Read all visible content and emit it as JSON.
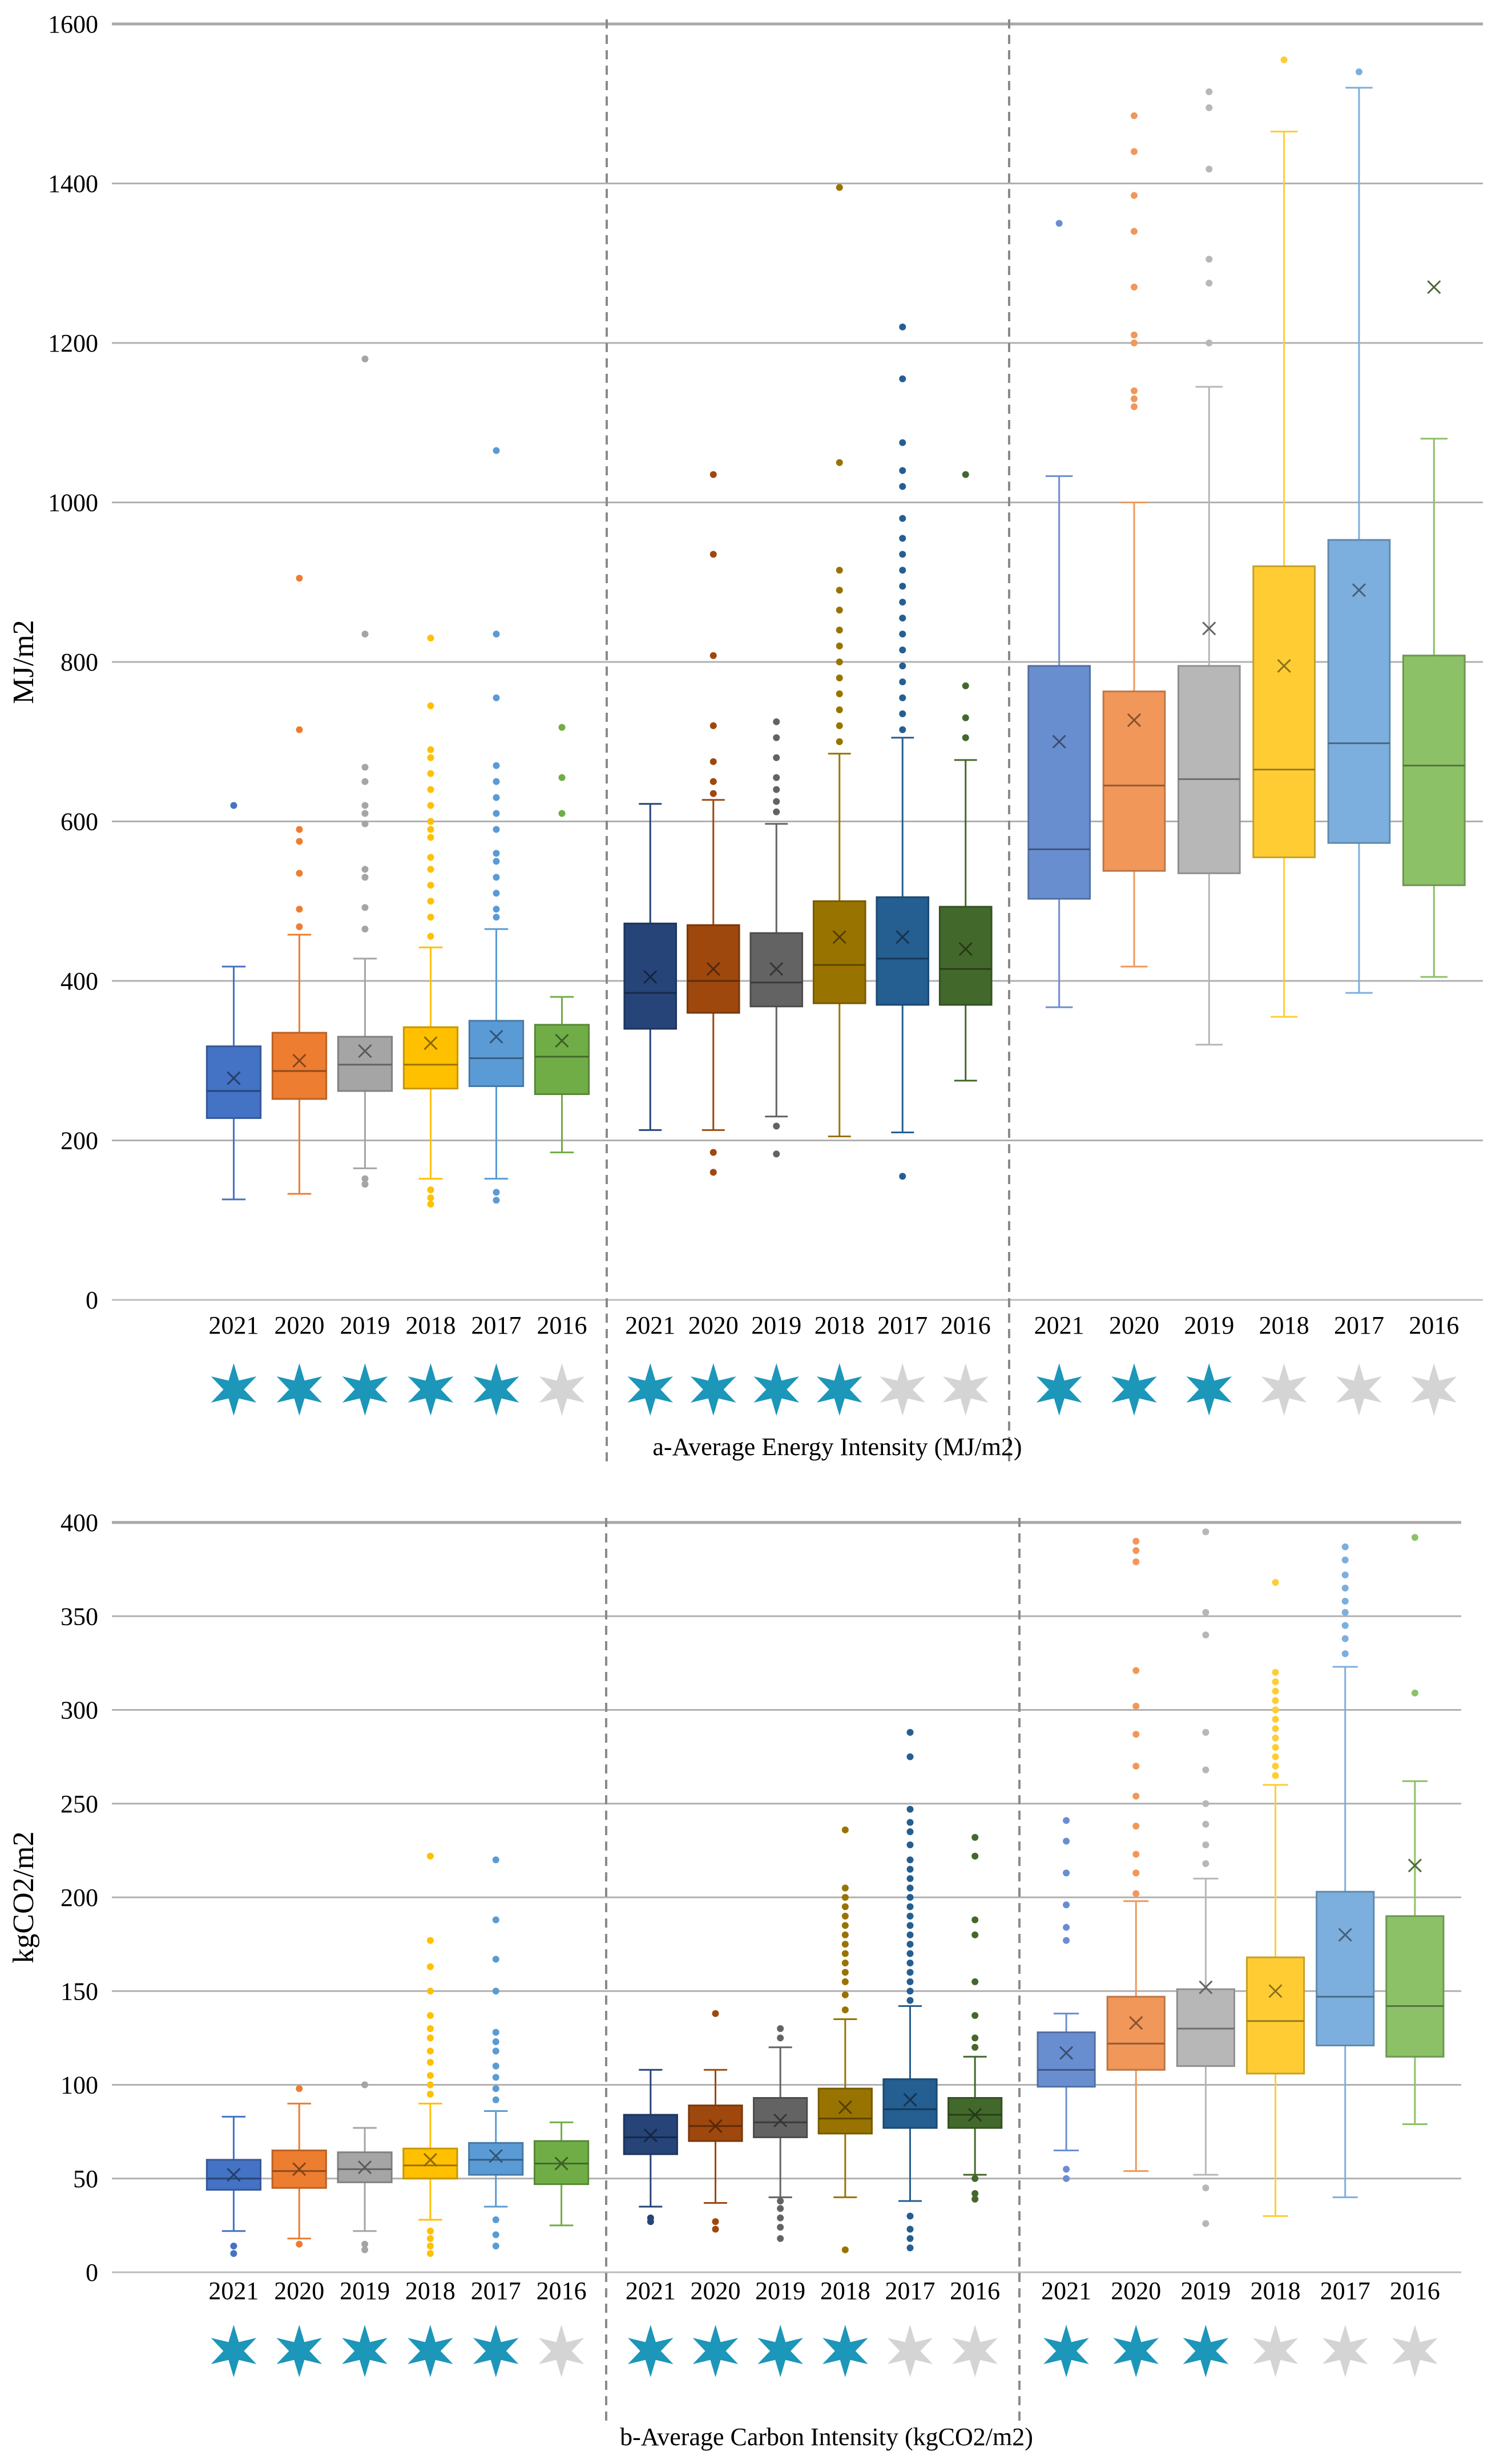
{
  "chart_data": [
    {
      "type": "boxplot",
      "caption": "a-Average Energy Intensity (MJ/m2)",
      "ylabel": "MJ/m2",
      "ylim": [
        0,
        1600
      ],
      "yticks": [
        "0",
        "200",
        "400",
        "600",
        "800",
        "1000",
        "1200",
        "1400",
        "1600"
      ],
      "grid": true,
      "categories": [
        "2021",
        "2020",
        "2019",
        "2018",
        "2017",
        "2016"
      ],
      "groups": [
        {
          "stars": [
            true,
            true,
            true,
            true,
            true,
            false
          ],
          "boxes": [
            {
              "year": "2021",
              "color": "#4472C4",
              "min": 126,
              "q1": 228,
              "median": 262,
              "q3": 318,
              "max": 418,
              "mean": 278,
              "outliers": [
                620
              ]
            },
            {
              "year": "2020",
              "color": "#ED7D31",
              "min": 133,
              "q1": 252,
              "median": 287,
              "q3": 335,
              "max": 458,
              "mean": 300,
              "outliers": [
                468,
                490,
                535,
                575,
                590,
                715,
                905
              ]
            },
            {
              "year": "2019",
              "color": "#A5A5A5",
              "min": 165,
              "q1": 262,
              "median": 295,
              "q3": 330,
              "max": 428,
              "mean": 312,
              "outliers": [
                145,
                152,
                465,
                492,
                530,
                540,
                597,
                610,
                620,
                650,
                668,
                835,
                1180
              ]
            },
            {
              "year": "2018",
              "color": "#FFC000",
              "min": 152,
              "q1": 265,
              "median": 295,
              "q3": 342,
              "max": 442,
              "mean": 322,
              "outliers": [
                120,
                128,
                138,
                456,
                480,
                500,
                520,
                540,
                555,
                580,
                590,
                600,
                620,
                640,
                660,
                680,
                690,
                745,
                830
              ]
            },
            {
              "year": "2017",
              "color": "#5B9BD5",
              "min": 152,
              "q1": 268,
              "median": 303,
              "q3": 350,
              "max": 465,
              "mean": 330,
              "outliers": [
                125,
                135,
                480,
                490,
                510,
                530,
                550,
                560,
                590,
                610,
                630,
                650,
                670,
                755,
                835,
                1065
              ]
            },
            {
              "year": "2016",
              "color": "#70AD47",
              "min": 185,
              "q1": 258,
              "median": 305,
              "q3": 345,
              "max": 380,
              "mean": 325,
              "outliers": [
                610,
                655,
                718
              ]
            }
          ]
        },
        {
          "stars": [
            true,
            true,
            true,
            true,
            false,
            false
          ],
          "boxes": [
            {
              "year": "2021",
              "color": "#264478",
              "min": 213,
              "q1": 340,
              "median": 385,
              "q3": 472,
              "max": 622,
              "mean": 405,
              "outliers": []
            },
            {
              "year": "2020",
              "color": "#9E480E",
              "min": 213,
              "q1": 360,
              "median": 400,
              "q3": 470,
              "max": 627,
              "mean": 415,
              "outliers": [
                160,
                185,
                635,
                650,
                675,
                720,
                808,
                935,
                1035
              ]
            },
            {
              "year": "2019",
              "color": "#636363",
              "min": 230,
              "q1": 368,
              "median": 398,
              "q3": 460,
              "max": 597,
              "mean": 415,
              "outliers": [
                183,
                218,
                612,
                625,
                640,
                655,
                680,
                705,
                725
              ]
            },
            {
              "year": "2018",
              "color": "#997300",
              "min": 205,
              "q1": 372,
              "median": 420,
              "q3": 500,
              "max": 685,
              "mean": 455,
              "outliers": [
                700,
                720,
                740,
                760,
                780,
                800,
                820,
                840,
                865,
                890,
                915,
                1050,
                1395
              ]
            },
            {
              "year": "2017",
              "color": "#255E91",
              "min": 210,
              "q1": 370,
              "median": 428,
              "q3": 505,
              "max": 705,
              "mean": 455,
              "outliers": [
                155,
                715,
                735,
                755,
                775,
                795,
                815,
                835,
                855,
                875,
                895,
                915,
                935,
                955,
                980,
                1020,
                1040,
                1075,
                1155,
                1220
              ]
            },
            {
              "year": "2016",
              "color": "#43682B",
              "min": 275,
              "q1": 370,
              "median": 415,
              "q3": 493,
              "max": 677,
              "mean": 440,
              "outliers": [
                705,
                730,
                770,
                1035
              ]
            }
          ]
        },
        {
          "stars": [
            true,
            true,
            true,
            false,
            false,
            false
          ],
          "boxes": [
            {
              "year": "2021",
              "color": "#698ED0",
              "min": 367,
              "q1": 503,
              "median": 565,
              "q3": 795,
              "max": 1033,
              "mean": 700,
              "outliers": [
                1350
              ]
            },
            {
              "year": "2020",
              "color": "#F1975A",
              "min": 418,
              "q1": 538,
              "median": 645,
              "q3": 763,
              "max": 1000,
              "mean": 727,
              "outliers": [
                1120,
                1130,
                1140,
                1200,
                1210,
                1270,
                1340,
                1385,
                1440,
                1485
              ]
            },
            {
              "year": "2019",
              "color": "#B7B7B7",
              "min": 320,
              "q1": 535,
              "median": 653,
              "q3": 795,
              "max": 1145,
              "mean": 842,
              "outliers": [
                1200,
                1275,
                1305,
                1418,
                1495,
                1515
              ]
            },
            {
              "year": "2018",
              "color": "#FFCD33",
              "min": 355,
              "q1": 555,
              "median": 665,
              "q3": 920,
              "max": 1465,
              "mean": 795,
              "outliers": [
                1555
              ]
            },
            {
              "year": "2017",
              "color": "#7CAFDD",
              "min": 385,
              "q1": 573,
              "median": 698,
              "q3": 953,
              "max": 1520,
              "mean": 890,
              "outliers": [
                1540
              ]
            },
            {
              "year": "2016",
              "color": "#8CC168",
              "min": 405,
              "q1": 520,
              "median": 670,
              "q3": 808,
              "max": 1080,
              "mean": 1270,
              "outliers": []
            }
          ]
        }
      ]
    },
    {
      "type": "boxplot",
      "caption": "b-Average Carbon Intensity (kgCO2/m2)",
      "ylabel": "kgCO2/m2",
      "ylim": [
        0,
        400
      ],
      "yticks": [
        "0",
        "50",
        "100",
        "150",
        "200",
        "250",
        "300",
        "350",
        "400"
      ],
      "grid": true,
      "categories": [
        "2021",
        "2020",
        "2019",
        "2018",
        "2017",
        "2016"
      ],
      "groups": [
        {
          "stars": [
            true,
            true,
            true,
            true,
            true,
            false
          ],
          "boxes": [
            {
              "year": "2021",
              "color": "#4472C4",
              "min": 22,
              "q1": 44,
              "median": 50,
              "q3": 60,
              "max": 83,
              "mean": 52,
              "outliers": [
                10,
                14
              ]
            },
            {
              "year": "2020",
              "color": "#ED7D31",
              "min": 18,
              "q1": 45,
              "median": 54,
              "q3": 65,
              "max": 90,
              "mean": 55,
              "outliers": [
                15,
                98
              ]
            },
            {
              "year": "2019",
              "color": "#A5A5A5",
              "min": 22,
              "q1": 48,
              "median": 55,
              "q3": 64,
              "max": 77,
              "mean": 56,
              "outliers": [
                12,
                15,
                100
              ]
            },
            {
              "year": "2018",
              "color": "#FFC000",
              "min": 28,
              "q1": 50,
              "median": 57,
              "q3": 66,
              "max": 90,
              "mean": 60,
              "outliers": [
                10,
                14,
                18,
                22,
                95,
                100,
                105,
                112,
                118,
                125,
                130,
                137,
                150,
                163,
                177,
                222
              ]
            },
            {
              "year": "2017",
              "color": "#5B9BD5",
              "min": 35,
              "q1": 52,
              "median": 60,
              "q3": 69,
              "max": 86,
              "mean": 62,
              "outliers": [
                14,
                20,
                28,
                92,
                98,
                104,
                110,
                118,
                123,
                128,
                150,
                167,
                188,
                220
              ]
            },
            {
              "year": "2016",
              "color": "#70AD47",
              "min": 25,
              "q1": 47,
              "median": 58,
              "q3": 70,
              "max": 80,
              "mean": 58,
              "outliers": []
            }
          ]
        },
        {
          "stars": [
            true,
            true,
            true,
            true,
            false,
            false
          ],
          "boxes": [
            {
              "year": "2021",
              "color": "#264478",
              "min": 35,
              "q1": 63,
              "median": 72,
              "q3": 84,
              "max": 108,
              "mean": 73,
              "outliers": [
                27,
                29
              ]
            },
            {
              "year": "2020",
              "color": "#9E480E",
              "min": 37,
              "q1": 70,
              "median": 78,
              "q3": 89,
              "max": 108,
              "mean": 78,
              "outliers": [
                23,
                27,
                138
              ]
            },
            {
              "year": "2019",
              "color": "#636363",
              "min": 40,
              "q1": 72,
              "median": 80,
              "q3": 93,
              "max": 120,
              "mean": 81,
              "outliers": [
                18,
                24,
                29,
                34,
                38,
                125,
                130
              ]
            },
            {
              "year": "2018",
              "color": "#997300",
              "min": 40,
              "q1": 74,
              "median": 82,
              "q3": 98,
              "max": 135,
              "mean": 88,
              "outliers": [
                12,
                140,
                148,
                155,
                160,
                165,
                170,
                175,
                180,
                185,
                190,
                195,
                200,
                205,
                236
              ]
            },
            {
              "year": "2017",
              "color": "#255E91",
              "min": 38,
              "q1": 77,
              "median": 87,
              "q3": 103,
              "max": 142,
              "mean": 92,
              "outliers": [
                13,
                18,
                23,
                30,
                145,
                150,
                155,
                160,
                165,
                170,
                175,
                180,
                185,
                190,
                195,
                200,
                205,
                210,
                215,
                220,
                228,
                235,
                240,
                247,
                275,
                288
              ]
            },
            {
              "year": "2016",
              "color": "#43682B",
              "min": 52,
              "q1": 77,
              "median": 84,
              "q3": 93,
              "max": 115,
              "mean": 84,
              "outliers": [
                39,
                42,
                50,
                120,
                125,
                137,
                155,
                180,
                188,
                222,
                232
              ]
            }
          ]
        },
        {
          "stars": [
            true,
            true,
            true,
            false,
            false,
            false
          ],
          "boxes": [
            {
              "year": "2021",
              "color": "#698ED0",
              "min": 65,
              "q1": 99,
              "median": 108,
              "q3": 128,
              "max": 138,
              "mean": 117,
              "outliers": [
                50,
                55,
                177,
                184,
                196,
                213,
                230,
                241
              ]
            },
            {
              "year": "2020",
              "color": "#F1975A",
              "min": 54,
              "q1": 108,
              "median": 122,
              "q3": 147,
              "max": 198,
              "mean": 133,
              "outliers": [
                202,
                213,
                223,
                238,
                254,
                270,
                287,
                302,
                321,
                379,
                385,
                390
              ]
            },
            {
              "year": "2019",
              "color": "#B7B7B7",
              "min": 52,
              "q1": 110,
              "median": 130,
              "q3": 151,
              "max": 210,
              "mean": 152,
              "outliers": [
                26,
                45,
                218,
                228,
                239,
                250,
                268,
                288,
                340,
                352,
                395
              ]
            },
            {
              "year": "2018",
              "color": "#FFCD33",
              "min": 30,
              "q1": 106,
              "median": 134,
              "q3": 168,
              "max": 260,
              "mean": 150,
              "outliers": [
                265,
                270,
                275,
                280,
                285,
                290,
                295,
                300,
                305,
                310,
                315,
                320,
                368
              ]
            },
            {
              "year": "2017",
              "color": "#7CAFDD",
              "min": 40,
              "q1": 121,
              "median": 147,
              "q3": 203,
              "max": 323,
              "mean": 180,
              "outliers": [
                330,
                338,
                345,
                352,
                358,
                365,
                372,
                380,
                387
              ]
            },
            {
              "year": "2016",
              "color": "#8CC168",
              "min": 79,
              "q1": 115,
              "median": 142,
              "q3": 190,
              "max": 262,
              "mean": 217,
              "outliers": [
                309,
                392
              ]
            }
          ]
        }
      ]
    }
  ],
  "colors": {
    "star_on": "#1C96B9",
    "star_off": "#D4D4D4",
    "grid": "#B0B0B0",
    "divider": "#8A8A8A"
  }
}
